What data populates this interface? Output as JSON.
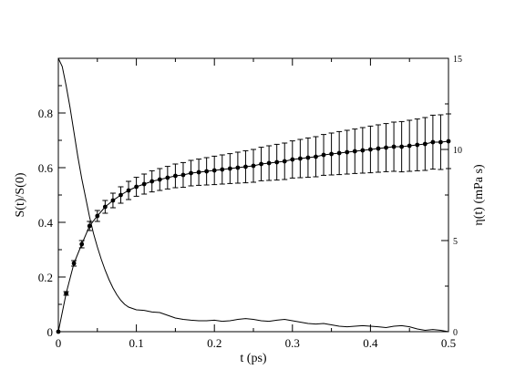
{
  "chart_data": {
    "type": "line",
    "xlabel": "t (ps)",
    "ylabel_left": "S(t)/S(0)",
    "ylabel_right": "η(t) (mPa s)",
    "xlim": [
      0,
      0.5
    ],
    "ylim_left": [
      0,
      1
    ],
    "ylim_right": [
      0,
      15
    ],
    "x_ticks": [
      "0",
      "0.1",
      "0.2",
      "0.3",
      "0.4",
      "0.5"
    ],
    "y_ticks_left": [
      "0",
      "0.2",
      "0.4",
      "0.6",
      "0.8"
    ],
    "y_ticks_right": [
      "0",
      "5",
      "10",
      "15"
    ],
    "grid": false,
    "series": [
      {
        "axis": "left",
        "style": "line",
        "x": [
          0,
          0.005,
          0.01,
          0.015,
          0.02,
          0.025,
          0.03,
          0.035,
          0.04,
          0.045,
          0.05,
          0.055,
          0.06,
          0.065,
          0.07,
          0.075,
          0.08,
          0.085,
          0.09,
          0.095,
          0.1,
          0.11,
          0.12,
          0.13,
          0.14,
          0.15,
          0.16,
          0.17,
          0.18,
          0.19,
          0.2,
          0.21,
          0.22,
          0.23,
          0.24,
          0.25,
          0.26,
          0.27,
          0.28,
          0.29,
          0.3,
          0.31,
          0.32,
          0.33,
          0.34,
          0.35,
          0.36,
          0.37,
          0.38,
          0.39,
          0.4,
          0.41,
          0.42,
          0.43,
          0.44,
          0.45,
          0.46,
          0.47,
          0.48,
          0.49,
          0.5
        ],
        "y": [
          1.0,
          0.97,
          0.9,
          0.82,
          0.73,
          0.64,
          0.56,
          0.49,
          0.42,
          0.36,
          0.31,
          0.265,
          0.225,
          0.19,
          0.16,
          0.135,
          0.115,
          0.1,
          0.09,
          0.085,
          0.08,
          0.078,
          0.072,
          0.07,
          0.06,
          0.05,
          0.045,
          0.042,
          0.04,
          0.04,
          0.042,
          0.038,
          0.04,
          0.045,
          0.048,
          0.045,
          0.04,
          0.038,
          0.042,
          0.045,
          0.04,
          0.035,
          0.03,
          0.028,
          0.03,
          0.025,
          0.02,
          0.018,
          0.02,
          0.022,
          0.02,
          0.018,
          0.015,
          0.02,
          0.022,
          0.018,
          0.01,
          0.005,
          0.008,
          0.005,
          0.0
        ]
      },
      {
        "axis": "right",
        "style": "markers-errorbars",
        "x": [
          0,
          0.01,
          0.02,
          0.03,
          0.04,
          0.05,
          0.06,
          0.07,
          0.08,
          0.09,
          0.1,
          0.11,
          0.12,
          0.13,
          0.14,
          0.15,
          0.16,
          0.17,
          0.18,
          0.19,
          0.2,
          0.21,
          0.22,
          0.23,
          0.24,
          0.25,
          0.26,
          0.27,
          0.28,
          0.29,
          0.3,
          0.31,
          0.32,
          0.33,
          0.34,
          0.35,
          0.36,
          0.37,
          0.38,
          0.39,
          0.4,
          0.41,
          0.42,
          0.43,
          0.44,
          0.45,
          0.46,
          0.47,
          0.48,
          0.49,
          0.5
        ],
        "y": [
          0,
          2.1,
          3.75,
          4.8,
          5.8,
          6.35,
          6.85,
          7.2,
          7.5,
          7.75,
          7.95,
          8.1,
          8.25,
          8.35,
          8.45,
          8.55,
          8.6,
          8.7,
          8.75,
          8.8,
          8.85,
          8.9,
          8.95,
          9.0,
          9.05,
          9.1,
          9.2,
          9.25,
          9.3,
          9.35,
          9.45,
          9.5,
          9.55,
          9.6,
          9.7,
          9.75,
          9.8,
          9.85,
          9.9,
          9.95,
          10.0,
          10.05,
          10.1,
          10.15,
          10.15,
          10.2,
          10.25,
          10.3,
          10.4,
          10.4,
          10.45
        ],
        "error": [
          0,
          0.1,
          0.15,
          0.2,
          0.25,
          0.3,
          0.35,
          0.4,
          0.45,
          0.5,
          0.52,
          0.55,
          0.58,
          0.6,
          0.62,
          0.65,
          0.68,
          0.7,
          0.72,
          0.75,
          0.78,
          0.8,
          0.82,
          0.85,
          0.88,
          0.9,
          0.92,
          0.95,
          0.98,
          1.0,
          1.02,
          1.05,
          1.08,
          1.1,
          1.12,
          1.15,
          1.18,
          1.2,
          1.22,
          1.25,
          1.28,
          1.3,
          1.32,
          1.35,
          1.38,
          1.4,
          1.42,
          1.45,
          1.48,
          1.5,
          1.5
        ]
      }
    ]
  }
}
